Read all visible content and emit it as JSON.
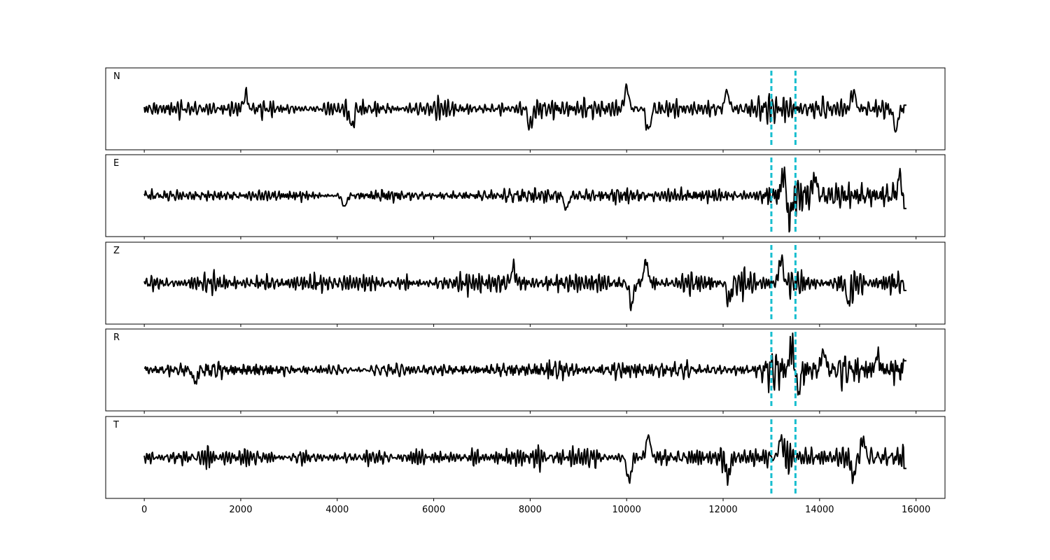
{
  "chart_data": {
    "type": "line",
    "x_ticks": [
      0,
      2000,
      4000,
      6000,
      8000,
      10000,
      12000,
      14000,
      16000
    ],
    "x_tick_labels": [
      "0",
      "2000",
      "4000",
      "6000",
      "8000",
      "10000",
      "12000",
      "14000",
      "16000"
    ],
    "xlim": [
      -800,
      16600
    ],
    "x_range": [
      0,
      15800
    ],
    "markers": [
      13000,
      13500
    ],
    "colors": {
      "trace": "#000000",
      "marker": "#17becf"
    },
    "grid": false,
    "panels": [
      {
        "label": "N",
        "seed": 11,
        "base_amp": 0.28,
        "late_amp": 0.45,
        "tail_level": 0.1,
        "peaks": [
          {
            "x": 10000,
            "v": 0.85
          },
          {
            "x": 10450,
            "v": -0.9
          },
          {
            "x": 12080,
            "v": 0.7
          },
          {
            "x": 14700,
            "v": 0.7
          },
          {
            "x": 15580,
            "v": -0.85
          },
          {
            "x": 4300,
            "v": -0.7
          },
          {
            "x": 8000,
            "v": -0.7
          },
          {
            "x": 2100,
            "v": 0.55
          }
        ]
      },
      {
        "label": "E",
        "seed": 23,
        "base_amp": 0.2,
        "late_amp": 0.55,
        "tail_level": -0.35,
        "peaks": [
          {
            "x": 13250,
            "v": 0.85
          },
          {
            "x": 13380,
            "v": -0.95
          },
          {
            "x": 13900,
            "v": 0.75
          },
          {
            "x": 15650,
            "v": 0.65
          },
          {
            "x": 8750,
            "v": -0.55
          },
          {
            "x": 4150,
            "v": -0.45
          }
        ]
      },
      {
        "label": "Z",
        "seed": 37,
        "base_amp": 0.33,
        "late_amp": 0.45,
        "tail_level": -0.2,
        "peaks": [
          {
            "x": 13200,
            "v": 0.95
          },
          {
            "x": 12120,
            "v": -0.7
          },
          {
            "x": 10400,
            "v": 0.85
          },
          {
            "x": 10100,
            "v": -0.85
          },
          {
            "x": 14600,
            "v": -0.75
          },
          {
            "x": 7650,
            "v": 0.6
          }
        ]
      },
      {
        "label": "R",
        "seed": 53,
        "base_amp": 0.22,
        "late_amp": 0.55,
        "tail_level": 0.25,
        "peaks": [
          {
            "x": 13420,
            "v": 0.95
          },
          {
            "x": 13560,
            "v": -0.8
          },
          {
            "x": 14080,
            "v": 0.75
          },
          {
            "x": 15200,
            "v": 0.55
          },
          {
            "x": 1050,
            "v": -0.5
          }
        ]
      },
      {
        "label": "T",
        "seed": 71,
        "base_amp": 0.28,
        "late_amp": 0.45,
        "tail_level": -0.3,
        "peaks": [
          {
            "x": 10050,
            "v": -0.95
          },
          {
            "x": 10450,
            "v": 0.85
          },
          {
            "x": 13200,
            "v": 0.75
          },
          {
            "x": 14700,
            "v": -0.75
          },
          {
            "x": 14900,
            "v": 0.7
          },
          {
            "x": 12100,
            "v": -0.75
          }
        ]
      }
    ]
  }
}
